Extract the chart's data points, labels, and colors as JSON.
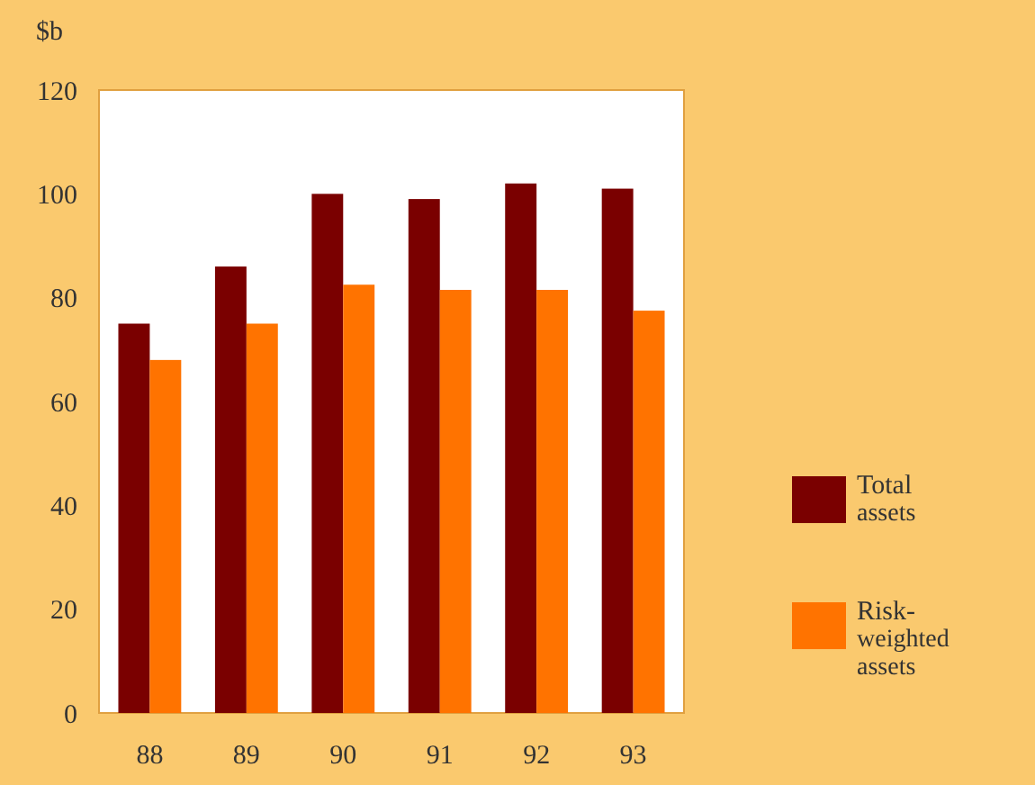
{
  "chart_data": {
    "type": "bar",
    "ylabel": "$b",
    "categories": [
      "88",
      "89",
      "90",
      "91",
      "92",
      "93"
    ],
    "series": [
      {
        "name": "Total assets",
        "color": "#7a0000",
        "values": [
          75,
          86,
          100,
          99,
          102,
          101
        ]
      },
      {
        "name": "Risk-weighted assets",
        "color": "#ff7300",
        "values": [
          68,
          75,
          82.5,
          81.5,
          81.5,
          77.5
        ]
      }
    ],
    "ylim": [
      0,
      120
    ],
    "yticks": [
      0,
      20,
      40,
      60,
      80,
      100,
      120
    ],
    "grid": false,
    "legend": "right"
  }
}
